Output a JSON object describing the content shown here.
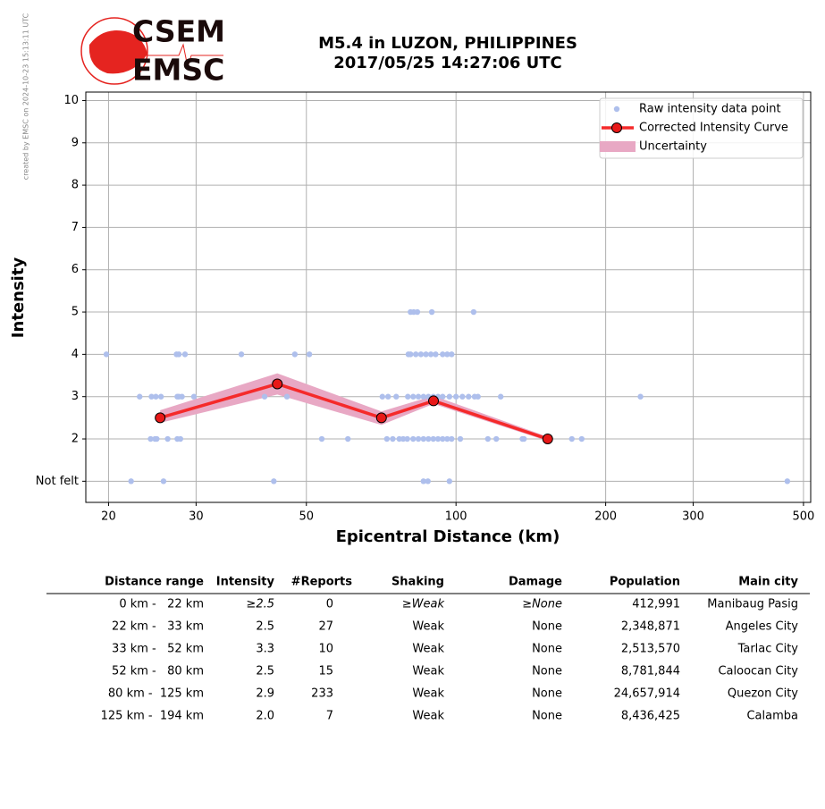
{
  "logo": {
    "top": "CSEM",
    "bottom": "EMSC"
  },
  "credit": "created by EMSC on 2024-10-23 15:13:11 UTC",
  "chart_data": {
    "type": "scatter",
    "title": "M5.4 in LUZON, PHILIPPINES",
    "subtitle": "2017/05/25 14:27:06 UTC",
    "x_label": "Epicentral Distance (km)",
    "y_label": "Intensity",
    "xscale": "log",
    "xlim": [
      18,
      517
    ],
    "ylim": [
      0.5,
      10.2
    ],
    "xticks": [
      20,
      30,
      50,
      100,
      200,
      300,
      500
    ],
    "yticks": [
      {
        "value": 1,
        "label": "Not felt"
      },
      2,
      3,
      4,
      5,
      6,
      7,
      8,
      9,
      10
    ],
    "grid": true,
    "legend": "upper right",
    "series": [
      {
        "name": "Raw intensity data point",
        "type": "scatter",
        "color": "#aebfec",
        "x": [
          19.8,
          27.4,
          27.7,
          28.5,
          37,
          47.4,
          50.7,
          80.2,
          81,
          83,
          85,
          87,
          89,
          91,
          94,
          96,
          98,
          81,
          82.2,
          83.6,
          89.4,
          108.5,
          23.1,
          24.4,
          24.9,
          25.5,
          27.5,
          27.7,
          28.1,
          29.7,
          41.2,
          45.7,
          71.1,
          73,
          75.8,
          80,
          82,
          84,
          86,
          88,
          90,
          92,
          94,
          97,
          100,
          103,
          106,
          109,
          110.7,
          123,
          235,
          24.3,
          24.8,
          25,
          26.3,
          27.5,
          27.9,
          53.7,
          60.6,
          72.6,
          74.6,
          76.9,
          78.3,
          79.8,
          82,
          84,
          86,
          88,
          90,
          92,
          94,
          96,
          98,
          102,
          115.9,
          120.5,
          136,
          137,
          171,
          179,
          22.2,
          25.8,
          43,
          86,
          87.8,
          97,
          464
        ],
        "values": [
          4,
          4,
          4,
          4,
          4,
          4,
          4,
          4,
          4,
          4,
          4,
          4,
          4,
          4,
          4,
          4,
          4,
          5,
          5,
          5,
          5,
          5,
          3,
          3,
          3,
          3,
          3,
          3,
          3,
          3,
          3,
          3,
          3,
          3,
          3,
          3,
          3,
          3,
          3,
          3,
          3,
          3,
          3,
          3,
          3,
          3,
          3,
          3,
          3,
          3,
          3,
          2,
          2,
          2,
          2,
          2,
          2,
          2,
          2,
          2,
          2,
          2,
          2,
          2,
          2,
          2,
          2,
          2,
          2,
          2,
          2,
          2,
          2,
          2,
          2,
          2,
          2,
          2,
          2,
          2,
          1,
          1,
          1,
          1,
          1,
          1,
          1
        ]
      },
      {
        "name": "Corrected Intensity Curve",
        "type": "line",
        "color": "#f52a2a",
        "marker_color": "#e81818",
        "x": [
          25.4,
          43.7,
          70.8,
          90.1,
          152.9
        ],
        "values": [
          2.5,
          3.3,
          2.5,
          2.9,
          2.0
        ]
      },
      {
        "name": "Uncertainty",
        "type": "band",
        "color": "#e8a8c4",
        "x": [
          25.4,
          43.7,
          70.8,
          90.1,
          152.9
        ],
        "lower": [
          2.38,
          3.05,
          2.33,
          2.83,
          1.95
        ],
        "upper": [
          2.68,
          3.55,
          2.65,
          3.02,
          2.05
        ]
      }
    ]
  },
  "table": {
    "header": [
      "Distance range",
      "Intensity",
      "#Reports",
      "Shaking",
      "Damage",
      "Population",
      "Main city"
    ],
    "rows": [
      [
        "0 km -   22 km",
        "≥2.5",
        "0",
        "≥Weak",
        "≥None",
        "412,991",
        "Manibaug Pasig"
      ],
      [
        "22 km -   33 km",
        "2.5",
        "27",
        "Weak",
        "None",
        "2,348,871",
        "Angeles City"
      ],
      [
        "33 km -   52 km",
        "3.3",
        "10",
        "Weak",
        "None",
        "2,513,570",
        "Tarlac City"
      ],
      [
        "52 km -   80 km",
        "2.5",
        "15",
        "Weak",
        "None",
        "8,781,844",
        "Caloocan City"
      ],
      [
        "80 km -  125 km",
        "2.9",
        "233",
        "Weak",
        "None",
        "24,657,914",
        "Quezon City"
      ],
      [
        "125 km -  194 km",
        "2.0",
        "7",
        "Weak",
        "None",
        "8,436,425",
        "Calamba"
      ]
    ]
  }
}
